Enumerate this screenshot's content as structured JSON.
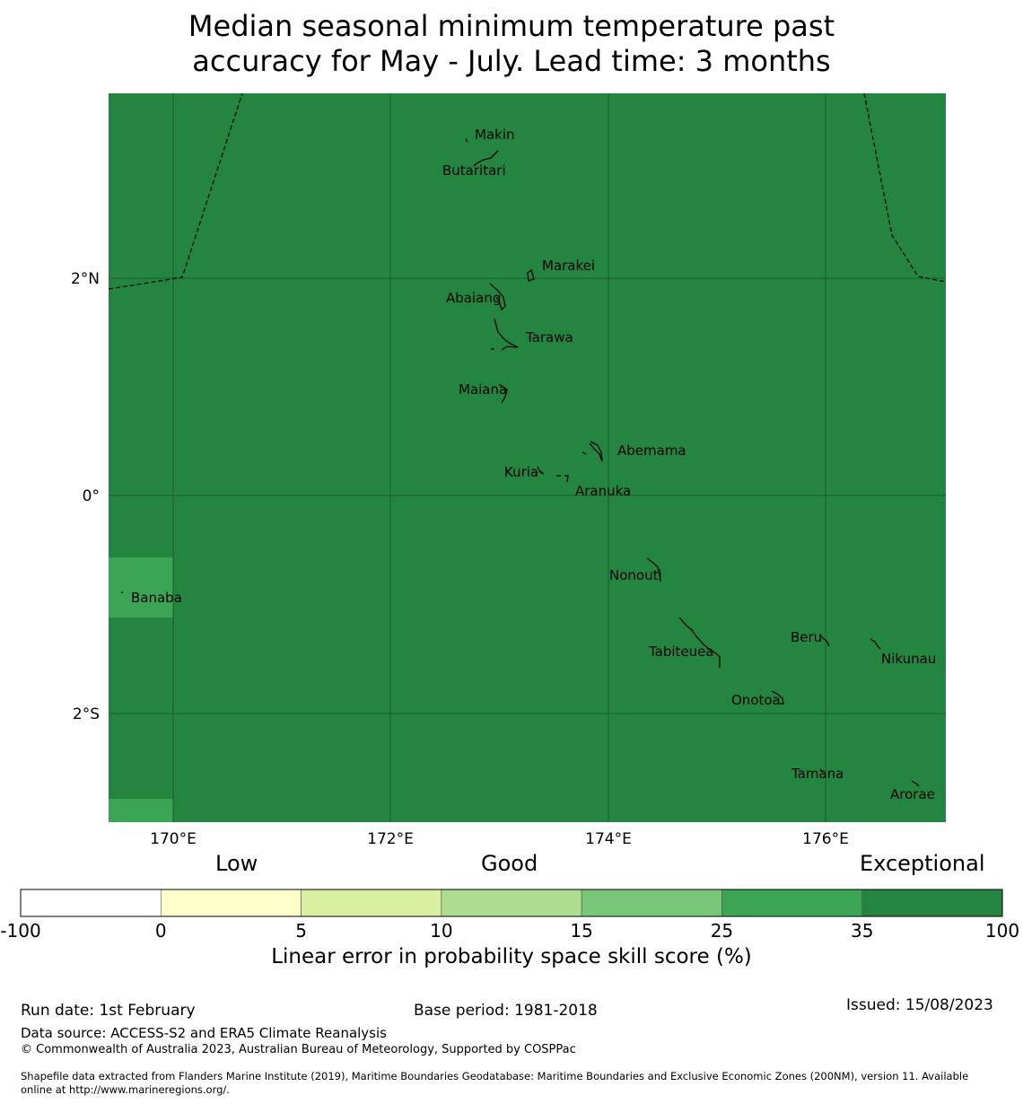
{
  "title": {
    "line1": "Median seasonal minimum temperature past",
    "line2": "accuracy for May - July. Lead time: 3 months"
  },
  "map": {
    "colors": {
      "exceptional": "#23853f",
      "very_good": "#3ca455",
      "grid": "#1a5e2c",
      "border": "#000000"
    },
    "x_ticks": [
      "170°E",
      "172°E",
      "174°E",
      "176°E"
    ],
    "y_ticks": [
      "2°N",
      "0°",
      "2°S"
    ],
    "islands": [
      {
        "name": "Makin"
      },
      {
        "name": "Butaritari"
      },
      {
        "name": "Marakei"
      },
      {
        "name": "Abaiang"
      },
      {
        "name": "Tarawa"
      },
      {
        "name": "Maiana"
      },
      {
        "name": "Abemama"
      },
      {
        "name": "Kuria"
      },
      {
        "name": "Aranuka"
      },
      {
        "name": "Nonouti"
      },
      {
        "name": "Banaba"
      },
      {
        "name": "Beru"
      },
      {
        "name": "Tabiteuea"
      },
      {
        "name": "Nikunau"
      },
      {
        "name": "Onotoa"
      },
      {
        "name": "Tamana"
      },
      {
        "name": "Arorae"
      }
    ]
  },
  "colorbar": {
    "categories": [
      "Low",
      "Good",
      "Exceptional"
    ],
    "bins": [
      {
        "from": "-100",
        "to": "0",
        "color": "#ffffff"
      },
      {
        "from": "0",
        "to": "5",
        "color": "#ffffcc"
      },
      {
        "from": "5",
        "to": "10",
        "color": "#d9f0a3"
      },
      {
        "from": "10",
        "to": "15",
        "color": "#addd8e"
      },
      {
        "from": "15",
        "to": "25",
        "color": "#78c679"
      },
      {
        "from": "25",
        "to": "35",
        "color": "#3ca455"
      },
      {
        "from": "35",
        "to": "100",
        "color": "#23853f"
      }
    ],
    "tick_labels": [
      "-100",
      "0",
      "5",
      "10",
      "15",
      "25",
      "35",
      "100"
    ],
    "label": "Linear error in probability space skill score (%)"
  },
  "footer": {
    "run_date": "Run date: 1st February",
    "base_period": "Base period: 1981-2018",
    "issued": "Issued: 15/08/2023",
    "data_source": "Data source: ACCESS-S2 and ERA5 Climate Reanalysis",
    "copyright": "© Commonwealth of Australia 2023, Australian Bureau of Meteorology, Supported by COSPPac",
    "shapefile_line1": "Shapefile data extracted from Flanders Marine Institute (2019), Maritime Boundaries Geodatabase: Maritime Boundaries and Exclusive Economic Zones (200NM), version 11. Available",
    "shapefile_line2": "online at http://www.marineregions.org/."
  }
}
